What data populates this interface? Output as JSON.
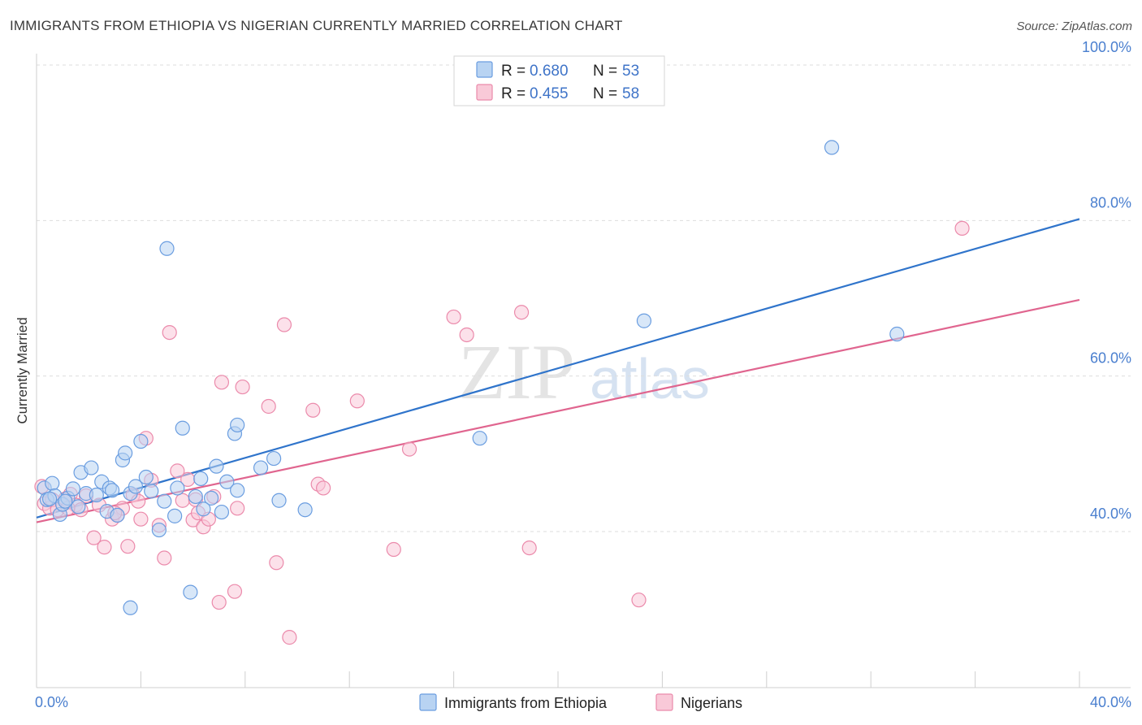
{
  "title": "IMMIGRANTS FROM ETHIOPIA VS NIGERIAN CURRENTLY MARRIED CORRELATION CHART",
  "source": "Source: ZipAtlas.com",
  "watermark": {
    "zip": "ZIP",
    "atlas": "atlas"
  },
  "colors": {
    "blue_fill": "#b8d3f2",
    "blue_stroke": "#6a9de0",
    "blue_line": "#2f74cb",
    "pink_fill": "#f9c9d8",
    "pink_stroke": "#eb8aab",
    "pink_line": "#e0658f",
    "axis_text": "#4a7fcf",
    "grid": "#dddddd"
  },
  "legend": {
    "rows": [
      {
        "r_label": "R = ",
        "r_value": "0.680",
        "n_label": "N = ",
        "n_value": "53"
      },
      {
        "r_label": "R = ",
        "r_value": "0.455",
        "n_label": "N = ",
        "n_value": "58"
      }
    ]
  },
  "chart_data": {
    "type": "scatter",
    "ylabel": "Currently Married",
    "xlim": [
      0,
      40
    ],
    "ylim": [
      22,
      102
    ],
    "x_tick_labels": [
      "0.0%",
      "40.0%"
    ],
    "y_ticks": [
      40,
      60,
      80,
      100
    ],
    "y_tick_labels": [
      "40.0%",
      "60.0%",
      "80.0%",
      "100.0%"
    ],
    "grid": "horizontal dashed",
    "legend_position": "top-center",
    "series": [
      {
        "name": "Immigrants from Ethiopia",
        "color": "#6a9de0",
        "trend": {
          "x": [
            0,
            40
          ],
          "y": [
            41.8,
            80.2
          ]
        },
        "points": [
          [
            0.3,
            45.6
          ],
          [
            0.4,
            44.1
          ],
          [
            0.6,
            46.2
          ],
          [
            0.7,
            44.6
          ],
          [
            0.9,
            42.2
          ],
          [
            1.0,
            43.5
          ],
          [
            1.2,
            44.3
          ],
          [
            1.4,
            45.5
          ],
          [
            1.6,
            43.2
          ],
          [
            1.7,
            47.6
          ],
          [
            1.9,
            44.9
          ],
          [
            2.1,
            48.2
          ],
          [
            2.3,
            44.7
          ],
          [
            2.5,
            46.4
          ],
          [
            2.7,
            42.6
          ],
          [
            2.8,
            45.6
          ],
          [
            3.1,
            42.1
          ],
          [
            3.3,
            49.2
          ],
          [
            3.4,
            50.1
          ],
          [
            3.6,
            44.9
          ],
          [
            3.8,
            45.8
          ],
          [
            4.0,
            51.6
          ],
          [
            4.2,
            47.0
          ],
          [
            4.4,
            45.2
          ],
          [
            4.7,
            40.2
          ],
          [
            4.9,
            43.9
          ],
          [
            5.0,
            76.4
          ],
          [
            5.3,
            42.0
          ],
          [
            5.4,
            45.6
          ],
          [
            5.6,
            53.3
          ],
          [
            5.9,
            32.2
          ],
          [
            6.1,
            44.5
          ],
          [
            6.3,
            46.8
          ],
          [
            6.7,
            44.3
          ],
          [
            6.9,
            48.4
          ],
          [
            7.1,
            42.5
          ],
          [
            7.3,
            46.4
          ],
          [
            7.6,
            52.6
          ],
          [
            7.7,
            53.7
          ],
          [
            7.7,
            45.3
          ],
          [
            8.6,
            48.2
          ],
          [
            9.1,
            49.4
          ],
          [
            9.3,
            44.0
          ],
          [
            10.3,
            42.8
          ],
          [
            3.6,
            30.2
          ],
          [
            6.4,
            42.9
          ],
          [
            0.5,
            44.2
          ],
          [
            17.0,
            52.0
          ],
          [
            23.3,
            67.1
          ],
          [
            30.5,
            89.4
          ],
          [
            33.0,
            65.4
          ],
          [
            2.9,
            45.3
          ],
          [
            1.1,
            43.9
          ]
        ]
      },
      {
        "name": "Nigerians",
        "color": "#eb8aab",
        "trend": {
          "x": [
            0,
            40
          ],
          "y": [
            41.2,
            69.8
          ]
        },
        "points": [
          [
            0.2,
            45.8
          ],
          [
            0.3,
            43.6
          ],
          [
            0.5,
            43.0
          ],
          [
            0.6,
            44.1
          ],
          [
            0.8,
            42.8
          ],
          [
            1.0,
            43.5
          ],
          [
            1.1,
            44.2
          ],
          [
            1.3,
            44.8
          ],
          [
            1.5,
            43.4
          ],
          [
            1.7,
            42.8
          ],
          [
            1.9,
            44.6
          ],
          [
            2.2,
            39.2
          ],
          [
            2.6,
            38.0
          ],
          [
            2.9,
            41.6
          ],
          [
            3.1,
            42.1
          ],
          [
            3.3,
            43.0
          ],
          [
            3.5,
            38.1
          ],
          [
            3.7,
            44.7
          ],
          [
            3.9,
            43.9
          ],
          [
            4.0,
            41.6
          ],
          [
            4.2,
            52.0
          ],
          [
            4.4,
            46.6
          ],
          [
            4.7,
            40.8
          ],
          [
            4.9,
            36.6
          ],
          [
            5.1,
            65.6
          ],
          [
            5.4,
            47.8
          ],
          [
            5.6,
            44.0
          ],
          [
            5.8,
            46.7
          ],
          [
            6.0,
            41.5
          ],
          [
            6.2,
            42.4
          ],
          [
            6.4,
            40.6
          ],
          [
            6.6,
            41.6
          ],
          [
            6.8,
            44.5
          ],
          [
            7.0,
            30.9
          ],
          [
            7.1,
            59.2
          ],
          [
            7.6,
            32.3
          ],
          [
            7.7,
            43.0
          ],
          [
            7.9,
            58.6
          ],
          [
            8.9,
            56.1
          ],
          [
            9.2,
            36.0
          ],
          [
            9.5,
            66.6
          ],
          [
            9.7,
            26.4
          ],
          [
            10.6,
            55.6
          ],
          [
            10.8,
            46.1
          ],
          [
            11.0,
            45.6
          ],
          [
            12.3,
            56.8
          ],
          [
            13.7,
            37.7
          ],
          [
            14.3,
            50.6
          ],
          [
            16.0,
            67.6
          ],
          [
            16.5,
            65.3
          ],
          [
            18.6,
            68.2
          ],
          [
            18.9,
            37.9
          ],
          [
            23.1,
            31.2
          ],
          [
            35.5,
            79.0
          ],
          [
            1.2,
            43.0
          ],
          [
            2.4,
            43.4
          ],
          [
            6.1,
            44.1
          ],
          [
            3.0,
            42.4
          ]
        ]
      }
    ]
  }
}
